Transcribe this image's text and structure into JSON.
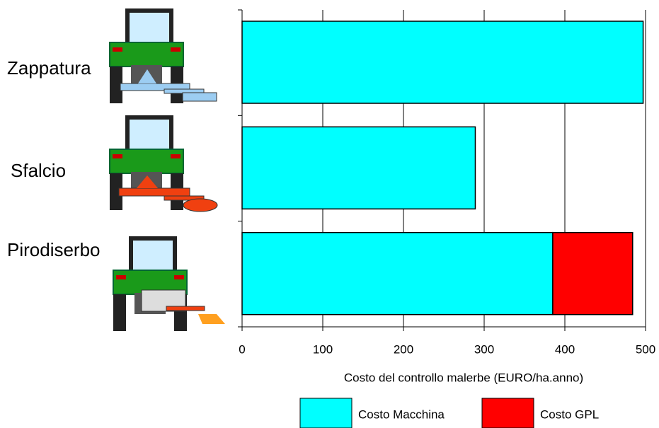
{
  "chart_data": {
    "type": "stacked-barh",
    "categories": [
      "Zappatura",
      "Sfalcio",
      "Pirodiserbo"
    ],
    "series": [
      {
        "name": "Costo Macchina",
        "color": "#00ffff",
        "values": [
          497,
          289,
          385
        ]
      },
      {
        "name": "Costo GPL",
        "color": "#ff0000",
        "values": [
          0,
          0,
          99
        ]
      }
    ],
    "x_label": "Costo del controllo malerbe (EURO/ha.anno)",
    "xlim": [
      0,
      500
    ],
    "xticks": [
      0,
      100,
      200,
      300,
      400,
      500
    ],
    "grid": true
  }
}
